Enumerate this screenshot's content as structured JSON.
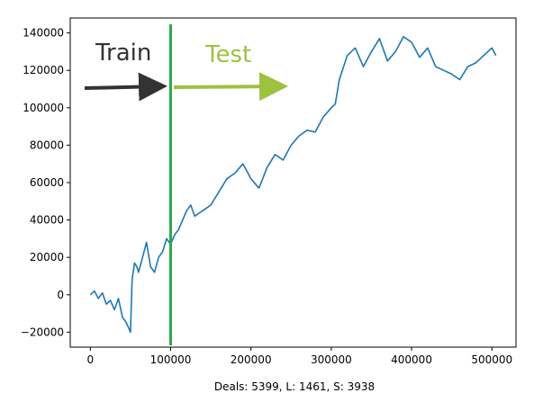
{
  "chart_data": {
    "type": "line",
    "xlabel": "Deals: 5399, L: 1461, S: 3938",
    "ylabel": "",
    "xlim": [
      -25000,
      530000
    ],
    "ylim": [
      -28000,
      148000
    ],
    "xticks": [
      0,
      100000,
      200000,
      300000,
      400000,
      500000
    ],
    "xtick_labels": [
      "0",
      "100000",
      "200000",
      "300000",
      "400000",
      "500000"
    ],
    "yticks": [
      -20000,
      0,
      20000,
      40000,
      60000,
      80000,
      100000,
      120000,
      140000
    ],
    "ytick_labels": [
      "−20000",
      "0",
      "20000",
      "40000",
      "60000",
      "80000",
      "100000",
      "120000",
      "140000"
    ],
    "grid": false,
    "series": [
      {
        "color": "#1f77b4",
        "x": [
          0,
          5000,
          10000,
          15000,
          20000,
          25000,
          30000,
          35000,
          40000,
          45000,
          48000,
          50000,
          52000,
          55000,
          58000,
          60000,
          65000,
          70000,
          75000,
          80000,
          85000,
          90000,
          95000,
          100000,
          105000,
          110000,
          120000,
          125000,
          130000,
          140000,
          150000,
          160000,
          170000,
          180000,
          190000,
          200000,
          210000,
          220000,
          230000,
          240000,
          250000,
          260000,
          270000,
          280000,
          290000,
          300000,
          305000,
          310000,
          320000,
          330000,
          340000,
          350000,
          360000,
          370000,
          380000,
          390000,
          400000,
          410000,
          420000,
          430000,
          440000,
          450000,
          460000,
          470000,
          480000,
          490000,
          500000,
          505000
        ],
        "values": [
          0,
          2000,
          -2000,
          1000,
          -5000,
          -3000,
          -8000,
          -2000,
          -12000,
          -15000,
          -18000,
          -20000,
          8000,
          17000,
          15000,
          12000,
          20000,
          28000,
          15000,
          12000,
          20000,
          23000,
          30000,
          27000,
          32000,
          35000,
          45000,
          48000,
          42000,
          45000,
          48000,
          55000,
          62000,
          65000,
          70000,
          62000,
          57000,
          68000,
          75000,
          72000,
          80000,
          85000,
          88000,
          87000,
          95000,
          100000,
          102000,
          115000,
          128000,
          132000,
          122000,
          130000,
          137000,
          125000,
          130000,
          138000,
          135000,
          127000,
          132000,
          122000,
          120000,
          118000,
          115000,
          122000,
          124000,
          128000,
          132000,
          128000
        ]
      }
    ],
    "split_x": 100000,
    "annotations": [
      {
        "text": "Train",
        "color": "#333333"
      },
      {
        "text": "Test",
        "color": "#9dc23f"
      }
    ],
    "split_line_color": "#2ca84c"
  }
}
